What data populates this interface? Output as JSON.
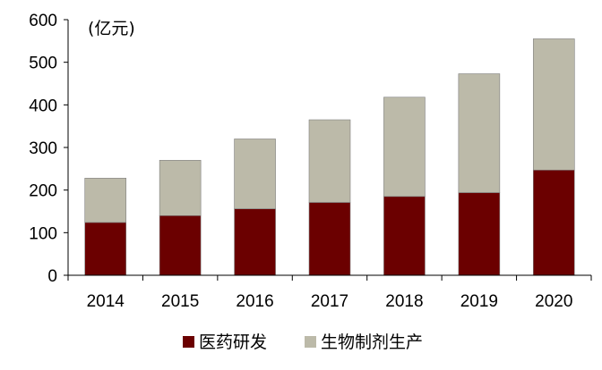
{
  "chart_data": {
    "type": "bar",
    "stacked": true,
    "unit_label": "(亿元)",
    "categories": [
      "2014",
      "2015",
      "2016",
      "2017",
      "2018",
      "2019",
      "2020"
    ],
    "series": [
      {
        "name": "医药研发",
        "color": "#6b0000",
        "values": [
          124,
          140,
          156,
          171,
          185,
          194,
          247
        ]
      },
      {
        "name": "生物制剂生产",
        "color": "#bcbaa9",
        "values": [
          104,
          130,
          164,
          194,
          233,
          279,
          308
        ]
      }
    ],
    "ylim": [
      0,
      600
    ],
    "yticks": [
      "0",
      "100",
      "200",
      "300",
      "400",
      "500",
      "600"
    ],
    "grid": false,
    "legend_position": "bottom"
  }
}
